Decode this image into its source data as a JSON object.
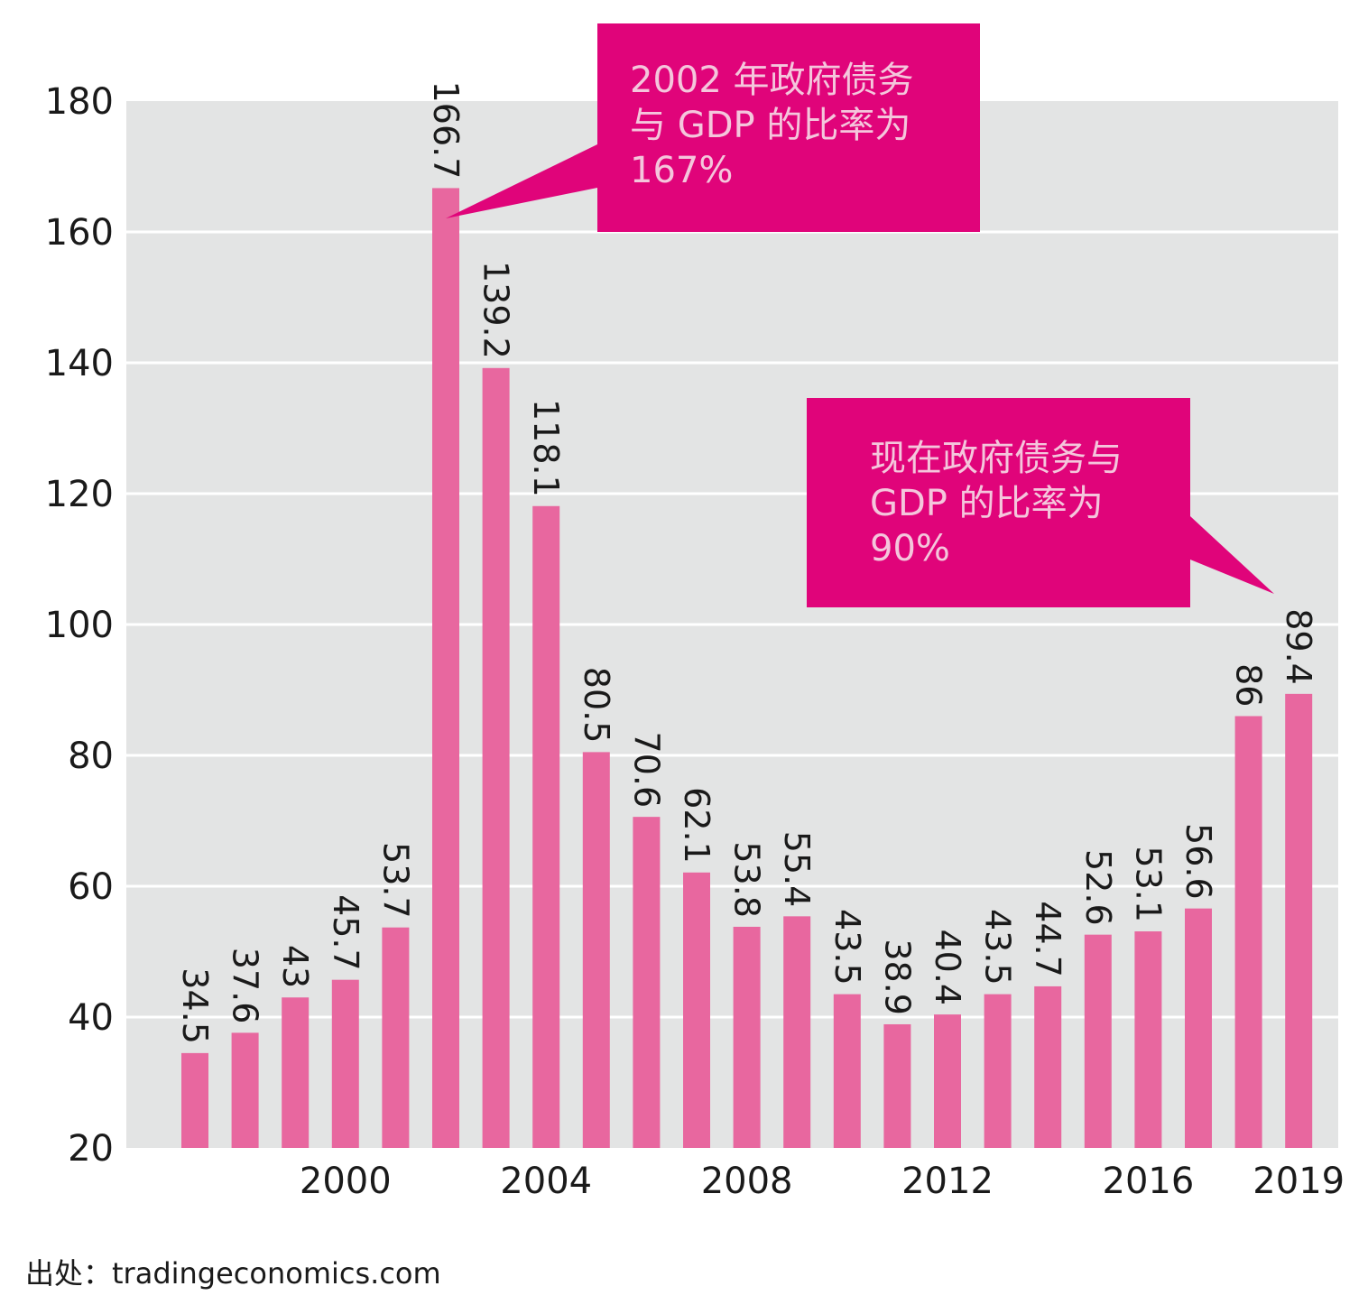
{
  "chart_data": {
    "type": "bar",
    "categories": [
      "1997",
      "1998",
      "1999",
      "2000",
      "2001",
      "2002",
      "2003",
      "2004",
      "2005",
      "2006",
      "2007",
      "2008",
      "2009",
      "2010",
      "2011",
      "2012",
      "2013",
      "2014",
      "2015",
      "2016",
      "2017",
      "2018",
      "2019"
    ],
    "values": [
      34.5,
      37.6,
      43,
      45.7,
      53.7,
      166.7,
      139.2,
      118.1,
      80.5,
      70.6,
      62.1,
      53.8,
      55.4,
      43.5,
      38.9,
      40.4,
      43.5,
      44.7,
      52.6,
      53.1,
      56.6,
      86,
      89.4
    ],
    "value_labels": [
      "34.5",
      "37.6",
      "43",
      "45.7",
      "53.7",
      "166.7",
      "139.2",
      "118.1",
      "80.5",
      "70.6",
      "62.1",
      "53.8",
      "55.4",
      "43.5",
      "38.9",
      "40.4",
      "43.5",
      "44.7",
      "52.6",
      "53.1",
      "56.6",
      "86",
      "89.4"
    ],
    "x_tick_labels": [
      {
        "category": "2000",
        "label": "2000"
      },
      {
        "category": "2004",
        "label": "2004"
      },
      {
        "category": "2008",
        "label": "2008"
      },
      {
        "category": "2012",
        "label": "2012"
      },
      {
        "category": "2016",
        "label": "2016"
      },
      {
        "category": "2019",
        "label": "2019"
      }
    ],
    "y_ticks": [
      20,
      40,
      60,
      80,
      100,
      120,
      140,
      160,
      180
    ],
    "ylim": [
      20,
      180
    ],
    "grid": true,
    "title": "",
    "xlabel": "",
    "ylabel": "",
    "bar_color": "#e8679f",
    "plot_background": "#e3e4e4",
    "gridline_color": "#ffffff",
    "annotations": [
      {
        "target_category": "2002",
        "lines": [
          "2002 年政府债务",
          "与 GDP 的比率为",
          "167%"
        ]
      },
      {
        "target_category": "2019",
        "lines": [
          "现在政府债务与",
          "GDP 的比率为",
          "90%"
        ]
      }
    ],
    "annotation_color": "#e0047a",
    "annotation_text_color": "#f4c6dc"
  },
  "source": "出处：tradingeconomics.com"
}
